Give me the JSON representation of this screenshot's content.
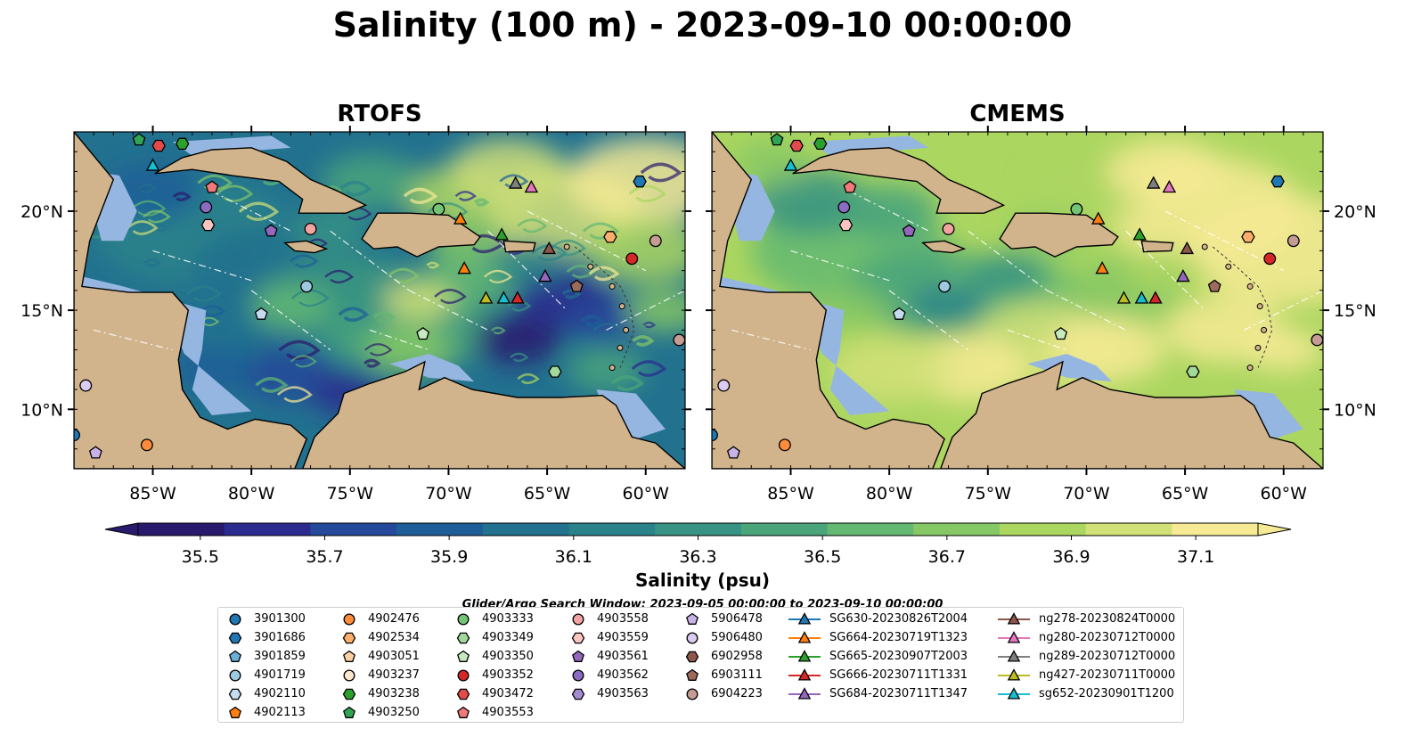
{
  "title": "Salinity (100 m) - 2023-09-10 00:00:00",
  "panels": [
    {
      "title": "RTOFS"
    },
    {
      "title": "CMEMS"
    }
  ],
  "axes": {
    "lon_ticks": [
      "85°W",
      "80°W",
      "75°W",
      "70°W",
      "65°W",
      "60°W"
    ],
    "lat_ticks": [
      "20°N",
      "15°N",
      "10°N"
    ]
  },
  "colorbar": {
    "label": "Salinity (psu)",
    "ticks": [
      "35.5",
      "35.7",
      "35.9",
      "36.1",
      "36.3",
      "36.5",
      "36.7",
      "36.9",
      "37.1"
    ],
    "min": 35.4,
    "max": 37.2,
    "colors": [
      "#2a1a6e",
      "#2b2a8e",
      "#24489a",
      "#1d5e99",
      "#22718f",
      "#2a828a",
      "#379383",
      "#4aa57b",
      "#63b872",
      "#86c865",
      "#abd660",
      "#d2e078",
      "#f6ea94"
    ]
  },
  "legend": {
    "title": "Glider/Argo Search Window: 2023-09-05 00:00:00 to 2023-09-10 00:00:00",
    "columns": [
      [
        {
          "label": "3901300",
          "shape": "circle",
          "color": "#1f77b4"
        },
        {
          "label": "3901686",
          "shape": "hexagon",
          "color": "#1f77b4"
        },
        {
          "label": "3901859",
          "shape": "pentagon",
          "color": "#6baed6"
        },
        {
          "label": "4901719",
          "shape": "circle",
          "color": "#9ecae1"
        },
        {
          "label": "4902110",
          "shape": "hexagon",
          "color": "#c6dbef"
        },
        {
          "label": "4902113",
          "shape": "pentagon",
          "color": "#ff7f0e"
        }
      ],
      [
        {
          "label": "4902476",
          "shape": "circle",
          "color": "#fd8d3c"
        },
        {
          "label": "4902534",
          "shape": "hexagon",
          "color": "#fdae6b"
        },
        {
          "label": "4903051",
          "shape": "pentagon",
          "color": "#fdd0a2"
        },
        {
          "label": "4903237",
          "shape": "circle",
          "color": "#fee6ce"
        },
        {
          "label": "4903238",
          "shape": "hexagon",
          "color": "#2ca02c"
        },
        {
          "label": "4903250",
          "shape": "pentagon",
          "color": "#31a354"
        }
      ],
      [
        {
          "label": "4903333",
          "shape": "circle",
          "color": "#74c476"
        },
        {
          "label": "4903349",
          "shape": "hexagon",
          "color": "#a1d99b"
        },
        {
          "label": "4903350",
          "shape": "pentagon",
          "color": "#c7e9c0"
        },
        {
          "label": "4903352",
          "shape": "circle",
          "color": "#d62728"
        },
        {
          "label": "4903472",
          "shape": "hexagon",
          "color": "#e34a4a"
        },
        {
          "label": "4903553",
          "shape": "pentagon",
          "color": "#f07a7a"
        }
      ],
      [
        {
          "label": "4903558",
          "shape": "circle",
          "color": "#f4a3a3"
        },
        {
          "label": "4903559",
          "shape": "hexagon",
          "color": "#fcc5c0"
        },
        {
          "label": "4903561",
          "shape": "pentagon",
          "color": "#9467bd"
        },
        {
          "label": "4903562",
          "shape": "circle",
          "color": "#8c6bc2"
        },
        {
          "label": "4903563",
          "shape": "hexagon",
          "color": "#a58bd2"
        }
      ],
      [
        {
          "label": "5906478",
          "shape": "pentagon",
          "color": "#c7b3e6"
        },
        {
          "label": "5906480",
          "shape": "circle",
          "color": "#dacbf0"
        },
        {
          "label": "6902958",
          "shape": "hexagon",
          "color": "#8c564b"
        },
        {
          "label": "6903111",
          "shape": "pentagon",
          "color": "#9c6b5e"
        },
        {
          "label": "6904223",
          "shape": "circle",
          "color": "#c49c94"
        }
      ],
      [
        {
          "label": "SG630-20230826T2004",
          "shape": "triangle",
          "color": "#1f77b4",
          "line": true
        },
        {
          "label": "SG664-20230719T1323",
          "shape": "triangle",
          "color": "#ff7f0e",
          "line": true
        },
        {
          "label": "SG665-20230907T2003",
          "shape": "triangle",
          "color": "#2ca02c",
          "line": true
        },
        {
          "label": "SG666-20230711T1331",
          "shape": "triangle",
          "color": "#d62728",
          "line": true
        },
        {
          "label": "SG684-20230711T1347",
          "shape": "triangle",
          "color": "#9467bd",
          "line": true
        }
      ],
      [
        {
          "label": "ng278-20230824T0000",
          "shape": "triangle",
          "color": "#8c564b",
          "line": true
        },
        {
          "label": "ng280-20230712T0000",
          "shape": "triangle",
          "color": "#e377c2",
          "line": true
        },
        {
          "label": "ng289-20230712T0000",
          "shape": "triangle",
          "color": "#7f7f7f",
          "line": true
        },
        {
          "label": "ng427-20230711T0000",
          "shape": "triangle",
          "color": "#bcbd22",
          "line": true
        },
        {
          "label": "sg652-20230901T1200",
          "shape": "triangle",
          "color": "#17becf",
          "line": true
        }
      ]
    ]
  },
  "colors": {
    "land": "#d2b48c",
    "shelf": "#95b6e0",
    "deep_pacific": "#2a1a6e"
  }
}
